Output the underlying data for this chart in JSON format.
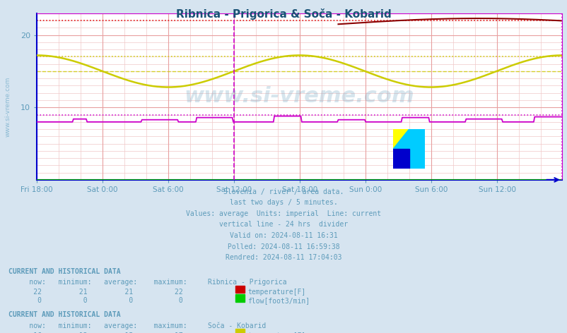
{
  "title": "Ribnica - Prigorica & Soča - Kobarid",
  "title_color": "#1a5276",
  "bg_color": "#d6e4f0",
  "plot_bg_color": "#ffffff",
  "grid_color": "#e8b8b8",
  "watermark": "www.si-vreme.com",
  "subtitle_lines": [
    "Slovenia / river / area data.",
    "last two days / 5 minutes.",
    "Values: average  Units: imperial  Line: current",
    "vertical line - 24 hrs  divider",
    "Valid on: 2024-08-11 16:31",
    "Polled: 2024-08-11 16:59:38",
    "Rendred: 2024-08-11 17:04:03"
  ],
  "subtitle_color": "#5d9bba",
  "x_ticks_labels": [
    "Fri 18:00",
    "Sat 0:00",
    "Sat 6:00",
    "Sat 12:00",
    "Sat 18:00",
    "Sun 0:00",
    "Sun 6:00",
    "Sun 12:00"
  ],
  "x_ticks_pos": [
    0,
    72,
    144,
    216,
    288,
    360,
    432,
    504
  ],
  "total_points": 576,
  "divider_x": 216,
  "ylim": [
    0,
    23
  ],
  "yticks": [
    10,
    20
  ],
  "axis_color": "#5d9bba",
  "ribnica_temp_color": "#8b0000",
  "ribnica_temp_dotted_color": "#dd0000",
  "ribnica_flow_color": "#00aa00",
  "soca_temp_color": "#cccc00",
  "soca_temp_dotted_color": "#cccc00",
  "soca_flow_color": "#cc00cc",
  "soca_flow_dotted_color": "#cc00cc",
  "divider_color": "#cc00cc",
  "border_color": "#cc00cc",
  "left_axis_color": "#0000cc",
  "bottom_axis_color": "#0000cc"
}
